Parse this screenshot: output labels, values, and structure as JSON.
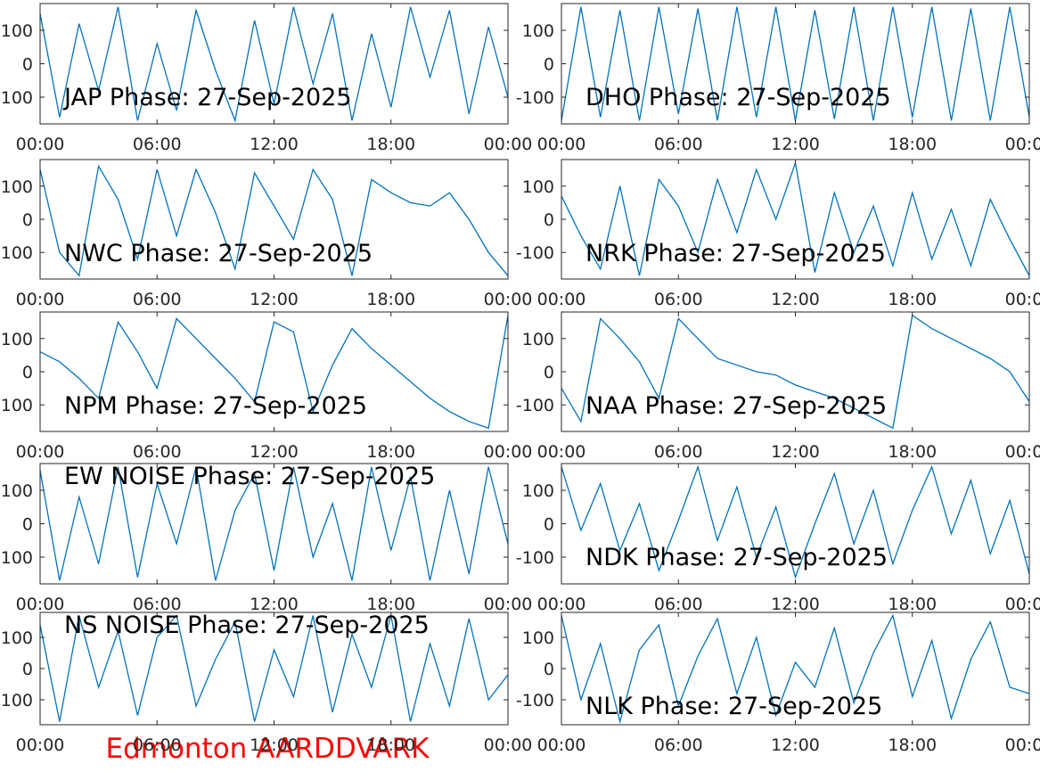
{
  "caption": "Edmonton AARDDVARK",
  "chart_data": [
    {
      "type": "line",
      "title": "JAP Phase: 27-Sep-2025",
      "x": [
        0,
        1,
        2,
        3,
        4,
        5,
        6,
        7,
        8,
        9,
        10,
        11,
        12,
        13,
        14,
        15,
        16,
        17,
        18,
        19,
        20,
        21,
        22,
        23,
        24
      ],
      "series": [
        {
          "color": "#0072bd",
          "values": [
            150,
            -160,
            120,
            -80,
            170,
            -170,
            60,
            -140,
            160,
            -20,
            -170,
            130,
            -120,
            170,
            -60,
            150,
            -170,
            90,
            -130,
            170,
            -40,
            160,
            -150,
            110,
            -100
          ]
        }
      ],
      "xlim": [
        0,
        24
      ],
      "ylim": [
        -180,
        180
      ],
      "yticks": [
        -100,
        0,
        100
      ],
      "xticks": [
        {
          "value": 0,
          "label": "00:00"
        },
        {
          "value": 6,
          "label": "06:00"
        },
        {
          "value": 12,
          "label": "12:00"
        },
        {
          "value": 18,
          "label": "18:00"
        },
        {
          "value": 24,
          "label": "00:00"
        }
      ]
    },
    {
      "type": "line",
      "title": "DHO Phase: 27-Sep-2025",
      "x": [
        0,
        1,
        2,
        3,
        4,
        5,
        6,
        7,
        8,
        9,
        10,
        11,
        12,
        13,
        14,
        15,
        16,
        17,
        18,
        19,
        20,
        21,
        22,
        23,
        24
      ],
      "series": [
        {
          "color": "#0072bd",
          "values": [
            -170,
            170,
            -160,
            160,
            -170,
            170,
            -150,
            165,
            -170,
            170,
            -160,
            170,
            -170,
            160,
            -165,
            170,
            -170,
            170,
            -160,
            170,
            -170,
            165,
            -170,
            170,
            -160
          ]
        }
      ],
      "xlim": [
        0,
        24
      ],
      "ylim": [
        -180,
        180
      ],
      "yticks": [
        -100,
        0,
        100
      ],
      "xticks": [
        {
          "value": 0,
          "label": "00:00"
        },
        {
          "value": 6,
          "label": "06:00"
        },
        {
          "value": 12,
          "label": "12:00"
        },
        {
          "value": 18,
          "label": "18:00"
        },
        {
          "value": 24,
          "label": "00:00"
        }
      ]
    },
    {
      "type": "line",
      "title": "NWC Phase: 27-Sep-2025",
      "x": [
        0,
        1,
        2,
        3,
        4,
        5,
        6,
        7,
        8,
        9,
        10,
        11,
        12,
        13,
        14,
        15,
        16,
        17,
        18,
        19,
        20,
        21,
        22,
        23,
        24
      ],
      "series": [
        {
          "color": "#0072bd",
          "values": [
            150,
            -100,
            -170,
            160,
            60,
            -120,
            150,
            -50,
            150,
            20,
            -150,
            140,
            40,
            -60,
            150,
            60,
            -170,
            120,
            80,
            50,
            40,
            80,
            0,
            -100,
            -170
          ]
        }
      ],
      "xlim": [
        0,
        24
      ],
      "ylim": [
        -180,
        180
      ],
      "yticks": [
        -100,
        0,
        100
      ],
      "xticks": [
        {
          "value": 0,
          "label": "00:00"
        },
        {
          "value": 6,
          "label": "06:00"
        },
        {
          "value": 12,
          "label": "12:00"
        },
        {
          "value": 18,
          "label": "18:00"
        },
        {
          "value": 24,
          "label": "00:00"
        }
      ]
    },
    {
      "type": "line",
      "title": "NRK Phase: 27-Sep-2025",
      "x": [
        0,
        1,
        2,
        3,
        4,
        5,
        6,
        7,
        8,
        9,
        10,
        11,
        12,
        13,
        14,
        15,
        16,
        17,
        18,
        19,
        20,
        21,
        22,
        23,
        24
      ],
      "series": [
        {
          "color": "#0072bd",
          "values": [
            70,
            -50,
            -150,
            100,
            -170,
            120,
            40,
            -100,
            120,
            -40,
            150,
            0,
            170,
            -160,
            80,
            -100,
            40,
            -140,
            80,
            -120,
            30,
            -140,
            60,
            -60,
            -170
          ]
        }
      ],
      "xlim": [
        0,
        24
      ],
      "ylim": [
        -180,
        180
      ],
      "yticks": [
        -100,
        0,
        100
      ],
      "xticks": [
        {
          "value": 0,
          "label": "00:00"
        },
        {
          "value": 6,
          "label": "06:00"
        },
        {
          "value": 12,
          "label": "12:00"
        },
        {
          "value": 18,
          "label": "18:00"
        },
        {
          "value": 24,
          "label": "00:00"
        }
      ]
    },
    {
      "type": "line",
      "title": "NPM Phase: 27-Sep-2025",
      "x": [
        0,
        1,
        2,
        3,
        4,
        5,
        6,
        7,
        8,
        9,
        10,
        11,
        12,
        13,
        14,
        15,
        16,
        17,
        18,
        19,
        20,
        21,
        22,
        23,
        24
      ],
      "series": [
        {
          "color": "#0072bd",
          "values": [
            60,
            30,
            -20,
            -80,
            150,
            60,
            -50,
            160,
            100,
            40,
            -20,
            -90,
            150,
            120,
            -120,
            20,
            130,
            70,
            20,
            -30,
            -80,
            -120,
            -150,
            -170,
            170
          ]
        }
      ],
      "xlim": [
        0,
        24
      ],
      "ylim": [
        -180,
        180
      ],
      "yticks": [
        -100,
        0,
        100
      ],
      "xticks": [
        {
          "value": 0,
          "label": "00:00"
        },
        {
          "value": 6,
          "label": "06:00"
        },
        {
          "value": 12,
          "label": "12:00"
        },
        {
          "value": 18,
          "label": "18:00"
        },
        {
          "value": 24,
          "label": "00:00"
        }
      ]
    },
    {
      "type": "line",
      "title": "NAA Phase: 27-Sep-2025",
      "x": [
        0,
        1,
        2,
        3,
        4,
        5,
        6,
        7,
        8,
        9,
        10,
        11,
        12,
        13,
        14,
        15,
        16,
        17,
        18,
        19,
        20,
        21,
        22,
        23,
        24
      ],
      "series": [
        {
          "color": "#0072bd",
          "values": [
            -50,
            -150,
            160,
            100,
            30,
            -80,
            160,
            100,
            40,
            20,
            0,
            -10,
            -40,
            -60,
            -80,
            -110,
            -140,
            -170,
            170,
            130,
            100,
            70,
            40,
            0,
            -90
          ]
        }
      ],
      "xlim": [
        0,
        24
      ],
      "ylim": [
        -180,
        180
      ],
      "yticks": [
        -100,
        0,
        100
      ],
      "xticks": [
        {
          "value": 0,
          "label": "00:00"
        },
        {
          "value": 6,
          "label": "06:00"
        },
        {
          "value": 12,
          "label": "12:00"
        },
        {
          "value": 18,
          "label": "18:00"
        },
        {
          "value": 24,
          "label": "00:00"
        }
      ]
    },
    {
      "type": "line",
      "title": "EW NOISE Phase: 27-Sep-2025",
      "x": [
        0,
        1,
        2,
        3,
        4,
        5,
        6,
        7,
        8,
        9,
        10,
        11,
        12,
        13,
        14,
        15,
        16,
        17,
        18,
        19,
        20,
        21,
        22,
        23,
        24
      ],
      "series": [
        {
          "color": "#0072bd",
          "values": [
            160,
            -170,
            80,
            -120,
            170,
            -160,
            120,
            -60,
            170,
            -170,
            40,
            150,
            -140,
            170,
            -100,
            60,
            -170,
            170,
            -80,
            140,
            -170,
            100,
            -150,
            170,
            -60
          ]
        }
      ],
      "xlim": [
        0,
        24
      ],
      "ylim": [
        -180,
        180
      ],
      "yticks": [
        -100,
        0,
        100
      ],
      "xticks": [
        {
          "value": 0,
          "label": "00:00"
        },
        {
          "value": 6,
          "label": "06:00"
        },
        {
          "value": 12,
          "label": "12:00"
        },
        {
          "value": 18,
          "label": "18:00"
        },
        {
          "value": 24,
          "label": "00:00"
        }
      ]
    },
    {
      "type": "line",
      "title": "NDK Phase: 27-Sep-2025",
      "x": [
        0,
        1,
        2,
        3,
        4,
        5,
        6,
        7,
        8,
        9,
        10,
        11,
        12,
        13,
        14,
        15,
        16,
        17,
        18,
        19,
        20,
        21,
        22,
        23,
        24
      ],
      "series": [
        {
          "color": "#0072bd",
          "values": [
            170,
            -20,
            120,
            -80,
            60,
            -140,
            10,
            170,
            -50,
            110,
            -100,
            50,
            -160,
            0,
            150,
            -60,
            100,
            -120,
            40,
            170,
            -30,
            130,
            -90,
            70,
            -150
          ]
        }
      ],
      "xlim": [
        0,
        24
      ],
      "ylim": [
        -180,
        180
      ],
      "yticks": [
        -100,
        0,
        100
      ],
      "xticks": [
        {
          "value": 0,
          "label": "00:00"
        },
        {
          "value": 6,
          "label": "06:00"
        },
        {
          "value": 12,
          "label": "12:00"
        },
        {
          "value": 18,
          "label": "18:00"
        },
        {
          "value": 24,
          "label": "00:00"
        }
      ]
    },
    {
      "type": "line",
      "title": "NS NOISE Phase: 27-Sep-2025",
      "x": [
        0,
        1,
        2,
        3,
        4,
        5,
        6,
        7,
        8,
        9,
        10,
        11,
        12,
        13,
        14,
        15,
        16,
        17,
        18,
        19,
        20,
        21,
        22,
        23,
        24
      ],
      "series": [
        {
          "color": "#0072bd",
          "values": [
            140,
            -170,
            170,
            -60,
            120,
            -150,
            100,
            170,
            -120,
            30,
            150,
            -170,
            60,
            -90,
            170,
            -140,
            110,
            -60,
            170,
            -170,
            80,
            -120,
            160,
            -100,
            -20
          ]
        }
      ],
      "xlim": [
        0,
        24
      ],
      "ylim": [
        -180,
        180
      ],
      "yticks": [
        -100,
        0,
        100
      ],
      "xticks": [
        {
          "value": 0,
          "label": "00:00"
        },
        {
          "value": 6,
          "label": "06:00"
        },
        {
          "value": 12,
          "label": "12:00"
        },
        {
          "value": 18,
          "label": "18:00"
        },
        {
          "value": 24,
          "label": "00:00"
        }
      ]
    },
    {
      "type": "line",
      "title": "NLK Phase: 27-Sep-2025",
      "x": [
        0,
        1,
        2,
        3,
        4,
        5,
        6,
        7,
        8,
        9,
        10,
        11,
        12,
        13,
        14,
        15,
        16,
        17,
        18,
        19,
        20,
        21,
        22,
        23,
        24
      ],
      "series": [
        {
          "color": "#0072bd",
          "values": [
            170,
            -100,
            80,
            -170,
            60,
            140,
            -120,
            40,
            160,
            -80,
            100,
            -150,
            20,
            -60,
            130,
            -110,
            50,
            170,
            -90,
            90,
            -160,
            30,
            150,
            -60,
            -80
          ]
        }
      ],
      "xlim": [
        0,
        24
      ],
      "ylim": [
        -180,
        180
      ],
      "yticks": [
        -100,
        0,
        100
      ],
      "xticks": [
        {
          "value": 0,
          "label": "00:00"
        },
        {
          "value": 6,
          "label": "06:00"
        },
        {
          "value": 12,
          "label": "12:00"
        },
        {
          "value": 18,
          "label": "18:00"
        },
        {
          "value": 24,
          "label": "00:00"
        }
      ]
    }
  ]
}
